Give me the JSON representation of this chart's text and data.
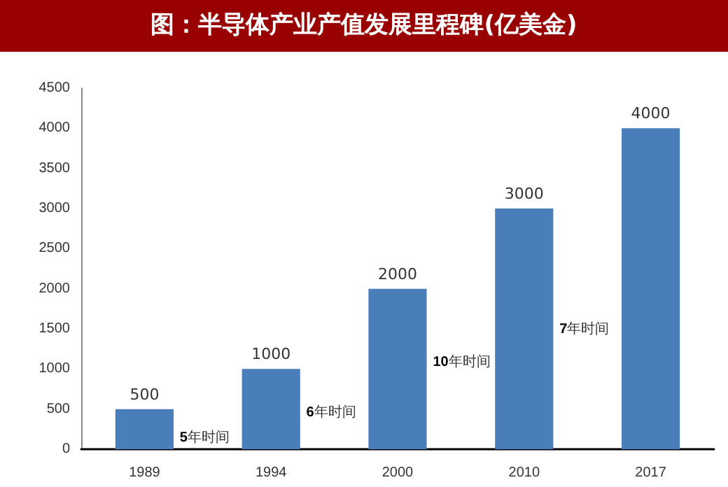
{
  "chart_data": {
    "type": "bar",
    "title": "图：半导体产业产值发展里程碑(亿美金)",
    "categories": [
      "1989",
      "1994",
      "2000",
      "2010",
      "2017"
    ],
    "values": [
      500,
      1000,
      2000,
      3000,
      4000
    ],
    "color": "#4a7ebb",
    "ylim": [
      0,
      4500
    ],
    "yticks": [
      0,
      500,
      1000,
      1500,
      2000,
      2500,
      3000,
      3500,
      4000,
      4500
    ],
    "data_labels": true,
    "grid": false,
    "annotations": [
      "5年时间",
      "6年时间",
      "10年时间",
      "7年时间"
    ]
  }
}
